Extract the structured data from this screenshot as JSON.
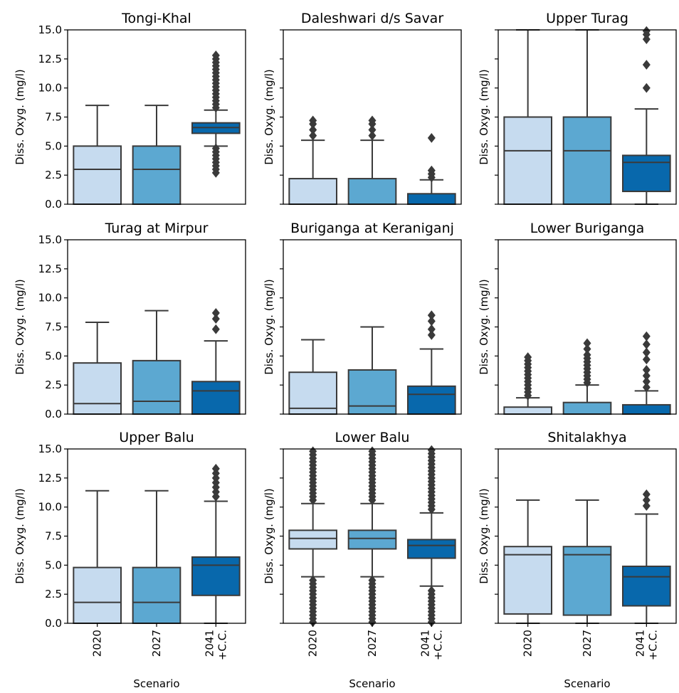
{
  "figure": {
    "ylabel": "Diss. Oxyg. (mg/l)",
    "xlabel": "Scenario",
    "categories": [
      "2020",
      "2027",
      "2041\n+C.C."
    ],
    "ylim": [
      0,
      15
    ],
    "yticks": [
      "0.0",
      "2.5",
      "5.0",
      "7.5",
      "10.0",
      "12.5",
      "15.0"
    ],
    "colors": [
      "#c6dbef",
      "#5ca8d1",
      "#0868ac"
    ]
  },
  "chart_data": [
    {
      "type": "box",
      "title": "Tongi-Khal",
      "boxes": [
        {
          "q1": 0.0,
          "median": 3.0,
          "q3": 5.0,
          "whisker_low": 0.0,
          "whisker_high": 8.5,
          "outliers": []
        },
        {
          "q1": 0.0,
          "median": 3.0,
          "q3": 5.0,
          "whisker_low": 0.0,
          "whisker_high": 8.5,
          "outliers": []
        },
        {
          "q1": 6.1,
          "median": 6.6,
          "q3": 7.0,
          "whisker_low": 5.0,
          "whisker_high": 8.1,
          "outliers": [
            2.7,
            3.0,
            3.3,
            3.6,
            3.9,
            4.2,
            4.5,
            4.8,
            8.3,
            8.6,
            8.9,
            9.2,
            9.5,
            9.8,
            10.1,
            10.4,
            10.7,
            11.0,
            11.3,
            11.6,
            11.9,
            12.2,
            12.5,
            12.8
          ]
        }
      ]
    },
    {
      "type": "box",
      "title": "Daleshwari d/s Savar",
      "boxes": [
        {
          "q1": 0.0,
          "median": 0.0,
          "q3": 2.2,
          "whisker_low": 0.0,
          "whisker_high": 5.5,
          "outliers": [
            5.9,
            6.4,
            6.9,
            7.2
          ]
        },
        {
          "q1": 0.0,
          "median": 0.0,
          "q3": 2.2,
          "whisker_low": 0.0,
          "whisker_high": 5.5,
          "outliers": [
            5.9,
            6.4,
            6.9,
            7.2
          ]
        },
        {
          "q1": 0.0,
          "median": 0.0,
          "q3": 0.9,
          "whisker_low": 0.0,
          "whisker_high": 2.1,
          "outliers": [
            2.3,
            2.6,
            2.9,
            5.7
          ]
        }
      ]
    },
    {
      "type": "box",
      "title": "Upper Turag",
      "boxes": [
        {
          "q1": 0.0,
          "median": 4.6,
          "q3": 7.5,
          "whisker_low": 0.0,
          "whisker_high": 15.0,
          "outliers": []
        },
        {
          "q1": 0.0,
          "median": 4.6,
          "q3": 7.5,
          "whisker_low": 0.0,
          "whisker_high": 15.0,
          "outliers": []
        },
        {
          "q1": 1.1,
          "median": 3.6,
          "q3": 4.2,
          "whisker_low": 0.0,
          "whisker_high": 8.2,
          "outliers": [
            10.0,
            12.0,
            14.2,
            14.6,
            14.9
          ]
        }
      ]
    },
    {
      "type": "box",
      "title": "Turag at Mirpur",
      "boxes": [
        {
          "q1": 0.0,
          "median": 0.9,
          "q3": 4.4,
          "whisker_low": 0.0,
          "whisker_high": 7.9,
          "outliers": []
        },
        {
          "q1": 0.0,
          "median": 1.1,
          "q3": 4.6,
          "whisker_low": 0.0,
          "whisker_high": 8.9,
          "outliers": []
        },
        {
          "q1": 0.0,
          "median": 2.0,
          "q3": 2.8,
          "whisker_low": 0.0,
          "whisker_high": 6.3,
          "outliers": [
            7.3,
            8.2,
            8.7
          ]
        }
      ]
    },
    {
      "type": "box",
      "title": "Buriganga at Keraniganj",
      "boxes": [
        {
          "q1": 0.0,
          "median": 0.5,
          "q3": 3.6,
          "whisker_low": 0.0,
          "whisker_high": 6.4,
          "outliers": []
        },
        {
          "q1": 0.0,
          "median": 0.7,
          "q3": 3.8,
          "whisker_low": 0.0,
          "whisker_high": 7.5,
          "outliers": []
        },
        {
          "q1": 0.0,
          "median": 1.7,
          "q3": 2.4,
          "whisker_low": 0.0,
          "whisker_high": 5.6,
          "outliers": [
            6.8,
            7.3,
            8.0,
            8.5
          ]
        }
      ]
    },
    {
      "type": "box",
      "title": "Lower Buriganga",
      "boxes": [
        {
          "q1": 0.0,
          "median": 0.0,
          "q3": 0.6,
          "whisker_low": 0.0,
          "whisker_high": 1.4,
          "outliers": [
            1.6,
            1.9,
            2.2,
            2.5,
            2.8,
            3.1,
            3.4,
            3.7,
            4.0,
            4.3,
            4.6,
            4.9
          ]
        },
        {
          "q1": 0.0,
          "median": 0.0,
          "q3": 1.0,
          "whisker_low": 0.0,
          "whisker_high": 2.5,
          "outliers": [
            2.7,
            3.0,
            3.3,
            3.6,
            3.9,
            4.2,
            4.5,
            4.8,
            5.1,
            5.6,
            6.1
          ]
        },
        {
          "q1": 0.0,
          "median": 0.0,
          "q3": 0.8,
          "whisker_low": 0.0,
          "whisker_high": 2.0,
          "outliers": [
            2.3,
            2.8,
            3.3,
            3.8,
            4.7,
            5.3,
            6.0,
            6.7
          ]
        }
      ]
    },
    {
      "type": "box",
      "title": "Upper Balu",
      "boxes": [
        {
          "q1": 0.0,
          "median": 1.8,
          "q3": 4.8,
          "whisker_low": 0.0,
          "whisker_high": 11.4,
          "outliers": []
        },
        {
          "q1": 0.0,
          "median": 1.8,
          "q3": 4.8,
          "whisker_low": 0.0,
          "whisker_high": 11.4,
          "outliers": []
        },
        {
          "q1": 2.4,
          "median": 5.0,
          "q3": 5.7,
          "whisker_low": 0.0,
          "whisker_high": 10.5,
          "outliers": [
            10.9,
            11.3,
            11.7,
            12.1,
            12.5,
            12.9,
            13.3
          ]
        }
      ]
    },
    {
      "type": "box",
      "title": "Lower Balu",
      "boxes": [
        {
          "q1": 6.4,
          "median": 7.3,
          "q3": 8.0,
          "whisker_low": 4.0,
          "whisker_high": 10.3,
          "outliers": [
            0.1,
            0.4,
            0.7,
            1.0,
            1.3,
            1.6,
            1.9,
            2.2,
            2.5,
            2.8,
            3.1,
            3.4,
            3.7,
            10.6,
            10.9,
            11.2,
            11.5,
            11.8,
            12.1,
            12.4,
            12.7,
            13.0,
            13.3,
            13.6,
            13.9,
            14.2,
            14.5,
            14.8
          ]
        },
        {
          "q1": 6.4,
          "median": 7.3,
          "q3": 8.0,
          "whisker_low": 4.0,
          "whisker_high": 10.3,
          "outliers": [
            0.1,
            0.4,
            0.7,
            1.0,
            1.3,
            1.6,
            1.9,
            2.2,
            2.5,
            2.8,
            3.1,
            3.4,
            3.7,
            10.6,
            10.9,
            11.2,
            11.5,
            11.8,
            12.1,
            12.4,
            12.7,
            13.0,
            13.3,
            13.6,
            13.9,
            14.2,
            14.5,
            14.8
          ]
        },
        {
          "q1": 5.6,
          "median": 6.7,
          "q3": 7.2,
          "whisker_low": 3.2,
          "whisker_high": 9.5,
          "outliers": [
            0.1,
            0.4,
            0.7,
            1.0,
            1.3,
            1.6,
            1.9,
            2.2,
            2.5,
            2.8,
            9.8,
            10.1,
            10.4,
            10.7,
            11.0,
            11.3,
            11.6,
            11.9,
            12.2,
            12.5,
            12.8,
            13.1,
            13.4,
            13.7,
            14.0,
            14.3,
            14.6,
            14.9
          ]
        }
      ]
    },
    {
      "type": "box",
      "title": "Shitalakhya",
      "boxes": [
        {
          "q1": 0.8,
          "median": 5.9,
          "q3": 6.6,
          "whisker_low": 0.0,
          "whisker_high": 10.6,
          "outliers": []
        },
        {
          "q1": 0.7,
          "median": 5.9,
          "q3": 6.6,
          "whisker_low": 0.0,
          "whisker_high": 10.6,
          "outliers": []
        },
        {
          "q1": 1.5,
          "median": 4.0,
          "q3": 4.9,
          "whisker_low": 0.0,
          "whisker_high": 9.4,
          "outliers": [
            10.1,
            10.6,
            11.1
          ]
        }
      ]
    }
  ]
}
